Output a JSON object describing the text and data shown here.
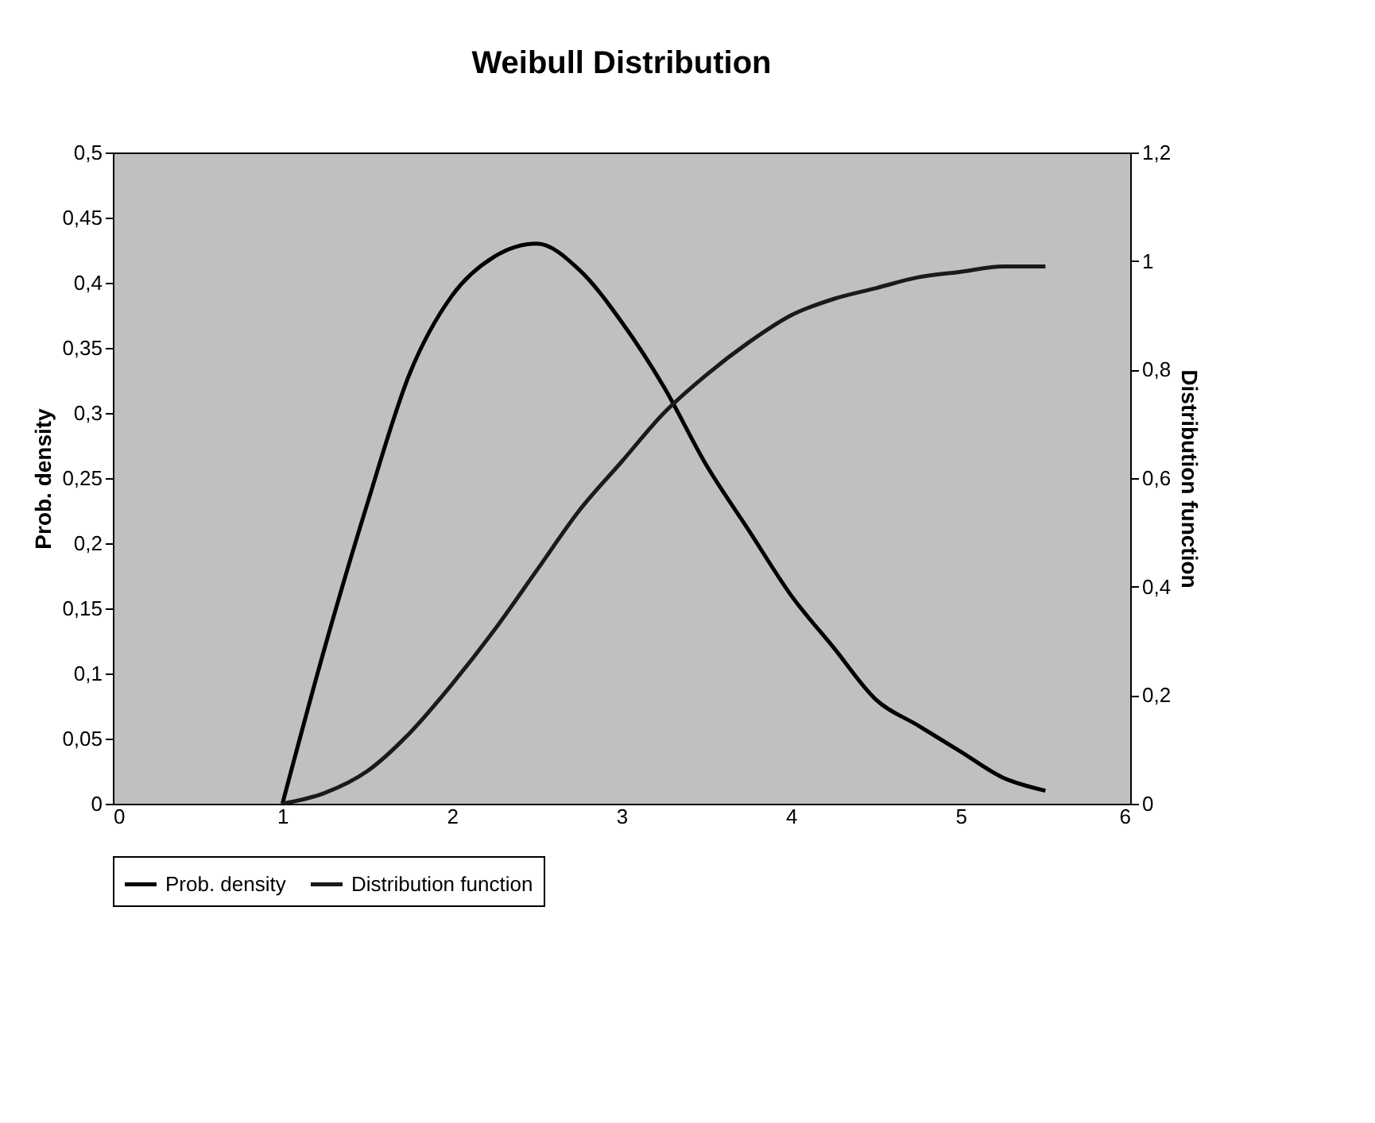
{
  "chart_data": {
    "type": "line",
    "title": "Weibull Distribution",
    "ylabel": "Prob. density",
    "y2label": "Distribution function",
    "x": [
      1,
      1.25,
      1.5,
      1.75,
      2,
      2.25,
      2.5,
      2.75,
      3,
      3.25,
      3.5,
      3.75,
      4,
      4.25,
      4.5,
      4.75,
      5,
      5.25,
      5.5
    ],
    "series": [
      {
        "name": "Prob. density",
        "color": "#000000",
        "values": [
          0,
          0.12,
          0.23,
          0.33,
          0.39,
          0.42,
          0.43,
          0.41,
          0.37,
          0.32,
          0.26,
          0.21,
          0.16,
          0.12,
          0.08,
          0.06,
          0.04,
          0.02,
          0.01
        ]
      },
      {
        "name": "Distribution function",
        "color": "#1a1a1a",
        "axis": "y2",
        "values": [
          0,
          0.02,
          0.06,
          0.13,
          0.22,
          0.32,
          0.43,
          0.54,
          0.63,
          0.72,
          0.79,
          0.85,
          0.9,
          0.93,
          0.95,
          0.97,
          0.98,
          0.99,
          0.99
        ]
      }
    ],
    "xlim": [
      0,
      6
    ],
    "xticks": [
      0,
      1,
      2,
      3,
      4,
      5,
      6
    ],
    "ylim": [
      0,
      0.5
    ],
    "yticks": [
      0,
      {
        "value": 0.05,
        "label": "0,05"
      },
      {
        "value": 0.1,
        "label": "0,1"
      },
      {
        "value": 0.15,
        "label": "0,15"
      },
      {
        "value": 0.2,
        "label": "0,2"
      },
      {
        "value": 0.25,
        "label": "0,25"
      },
      {
        "value": 0.3,
        "label": "0,3"
      },
      {
        "value": 0.35,
        "label": "0,35"
      },
      {
        "value": 0.4,
        "label": "0,4"
      },
      {
        "value": 0.45,
        "label": "0,45"
      },
      {
        "value": 0.5,
        "label": "0,5"
      }
    ],
    "y2lim": [
      0,
      1.2
    ],
    "y2ticks": [
      0,
      {
        "value": 0.2,
        "label": "0,2"
      },
      {
        "value": 0.4,
        "label": "0,4"
      },
      {
        "value": 0.6,
        "label": "0,6"
      },
      {
        "value": 0.8,
        "label": "0,8"
      },
      1,
      {
        "value": 1.2,
        "label": "1,2"
      }
    ],
    "grid": false,
    "legend": "bottom",
    "marker": "none",
    "line_style": "solid"
  }
}
